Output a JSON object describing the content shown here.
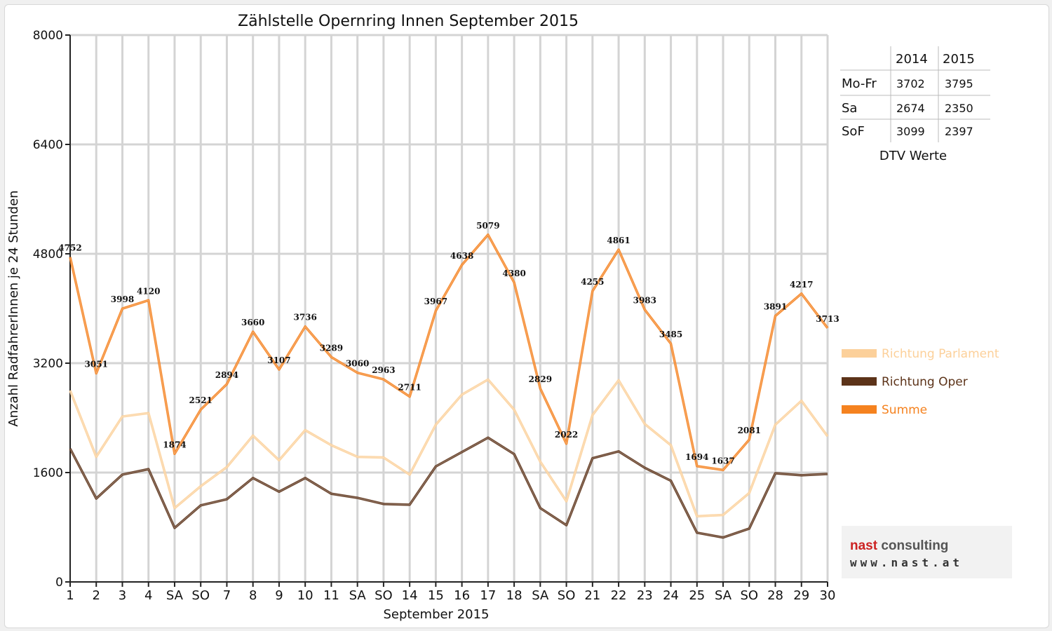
{
  "chart_data": {
    "type": "line",
    "title": "Zählstelle Opernring Innen September 2015",
    "xlabel": "September 2015",
    "ylabel": "Anzahl RadfahrerInnen je 24 Stunden",
    "ylim": [
      0,
      8000
    ],
    "yticks": [
      0,
      1600,
      3200,
      4800,
      6400,
      8000
    ],
    "grid": true,
    "legend_position": "right",
    "categories": [
      "1",
      "2",
      "3",
      "4",
      "SA",
      "SO",
      "7",
      "8",
      "9",
      "10",
      "11",
      "SA",
      "SO",
      "14",
      "15",
      "16",
      "17",
      "18",
      "SA",
      "SO",
      "21",
      "22",
      "23",
      "24",
      "25",
      "SA",
      "SO",
      "28",
      "29",
      "30"
    ],
    "weekend_red_categories": [
      5,
      12,
      19,
      26
    ],
    "series": [
      {
        "name": "Richtung Parlament",
        "color": "#fcd09a",
        "values": [
          2800,
          1830,
          2420,
          2470,
          1080,
          1400,
          1680,
          2140,
          1780,
          2220,
          2000,
          1830,
          1820,
          1570,
          2300,
          2740,
          2960,
          2520,
          1760,
          1180,
          2440,
          2950,
          2310,
          2000,
          960,
          980,
          1300,
          2300,
          2650,
          2130
        ]
      },
      {
        "name": "Richtung Oper",
        "color": "#5c3319",
        "values": [
          1950,
          1220,
          1570,
          1650,
          790,
          1120,
          1210,
          1520,
          1320,
          1520,
          1290,
          1230,
          1140,
          1130,
          1690,
          1900,
          2110,
          1870,
          1080,
          830,
          1810,
          1910,
          1670,
          1480,
          720,
          650,
          780,
          1590,
          1560,
          1580
        ]
      },
      {
        "name": "Summe",
        "color": "#f5821f",
        "values": [
          4752,
          3051,
          3998,
          4120,
          1874,
          2521,
          2894,
          3660,
          3107,
          3736,
          3289,
          3060,
          2963,
          2711,
          3967,
          4638,
          5079,
          4380,
          2829,
          2022,
          4255,
          4861,
          3983,
          3485,
          1694,
          1637,
          2081,
          3891,
          4217,
          3713
        ]
      }
    ],
    "data_labels": [
      "4752",
      "3051",
      "3998",
      "4120",
      "1874",
      "2521",
      "2894",
      "3660",
      "3107",
      "3736",
      "3289",
      "3060",
      "2963",
      "2711",
      "3967",
      "4638",
      "5079",
      "4380",
      "2829",
      "2022",
      "4255",
      "4861",
      "3983",
      "3485",
      "1694",
      "1637",
      "2081",
      "3891",
      "4217",
      "3713"
    ]
  },
  "dtv_table": {
    "caption": "DTV Werte",
    "columns": [
      "",
      "2014",
      "2015"
    ],
    "rows": [
      {
        "label": "Mo-Fr",
        "v2014": "3702",
        "v2015": "3795"
      },
      {
        "label": "Sa",
        "v2014": "2674",
        "v2015": "2350"
      },
      {
        "label": "SoF",
        "v2014": "3099",
        "v2015": "2397"
      }
    ]
  },
  "logo": {
    "brand_a": "nast",
    "brand_b": " consulting",
    "url": "www.nast.at",
    "colors": {
      "brand_a": "#cc2222",
      "brand_b": "#555555"
    }
  },
  "colors": {
    "red_label": "#e8000b",
    "grid": "#d4d4d4",
    "axis": "#222222"
  }
}
